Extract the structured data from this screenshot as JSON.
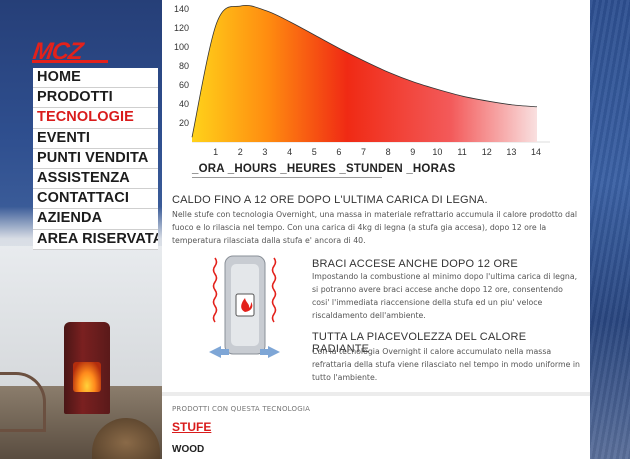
{
  "brand": {
    "logo_text": "MCZ"
  },
  "nav": {
    "items": [
      {
        "label": "HOME",
        "active": false
      },
      {
        "label": "PRODOTTI",
        "active": false
      },
      {
        "label": "TECNOLOGIE",
        "active": true
      },
      {
        "label": "EVENTI",
        "active": false
      },
      {
        "label": "PUNTI VENDITA",
        "active": false
      },
      {
        "label": "ASSISTENZA",
        "active": false
      },
      {
        "label": "CONTATTACI",
        "active": false
      },
      {
        "label": "AZIENDA",
        "active": false
      },
      {
        "label": "AREA RISERVATA",
        "active": false
      }
    ]
  },
  "chart_data": {
    "type": "area",
    "x": [
      0,
      1,
      2,
      3,
      4,
      5,
      6,
      7,
      8,
      9,
      10,
      11,
      12,
      13,
      14
    ],
    "y": [
      5,
      125,
      143,
      138,
      126,
      112,
      98,
      85,
      73,
      63,
      55,
      48,
      43,
      39,
      37
    ],
    "xlim": [
      0,
      14
    ],
    "ylim": [
      0,
      145
    ],
    "x_ticks": [
      "1",
      "2",
      "3",
      "4",
      "5",
      "6",
      "7",
      "8",
      "9",
      "10",
      "11",
      "12",
      "13",
      "14"
    ],
    "y_ticks": [
      "20",
      "40",
      "60",
      "80",
      "100",
      "120",
      "140"
    ],
    "xlabel": "_ORA _HOURS _HEURES _STUNDEN _HORAS",
    "ylabel": "",
    "title": "",
    "grid": false,
    "fill_gradient": [
      "#ffd21a",
      "#ff8c10",
      "#f02a14",
      "#f7d5d5"
    ]
  },
  "content": {
    "intro_title": "CALDO FINO A 12 ORE DOPO L'ULTIMA CARICA DI LEGNA.",
    "intro_text": "Nelle stufe con tecnologia Overnight, una massa in materiale refrattario accumula il calore prodotto dal fuoco e lo rilascia nel tempo. Con una carica di 4kg di legna (a stufa gia accesa), dopo 12 ore la temperatura rilasciata dalla stufa e' ancora di 40.",
    "braci_title": "BRACI ACCESE ANCHE DOPO 12 ORE",
    "braci_text": "Impostando la combustione al minimo dopo l'ultima carica di legna, si potranno avere braci accese anche dopo 12 ore, consentendo cosi' l'immediata riaccensione della stufa ed un piu' veloce riscaldamento dell'ambiente.",
    "tutta_title": "TUTTA LA PIACEVOLEZZA DEL CALORE RADIANTE",
    "tutta_text": "Con la tecnologia Overnight il calore accumulato nella massa refrattaria della stufa viene rilasciato nel tempo in modo uniforme in tutto l'ambiente."
  },
  "products": {
    "label": "PRODOTTI CON QUESTA TECNOLOGIA",
    "category": "STUFE",
    "subcategory": "WOOD"
  },
  "colors": {
    "accent": "#d91b1b",
    "logo": "#e3211b",
    "page_bg": "#2c4a86"
  }
}
